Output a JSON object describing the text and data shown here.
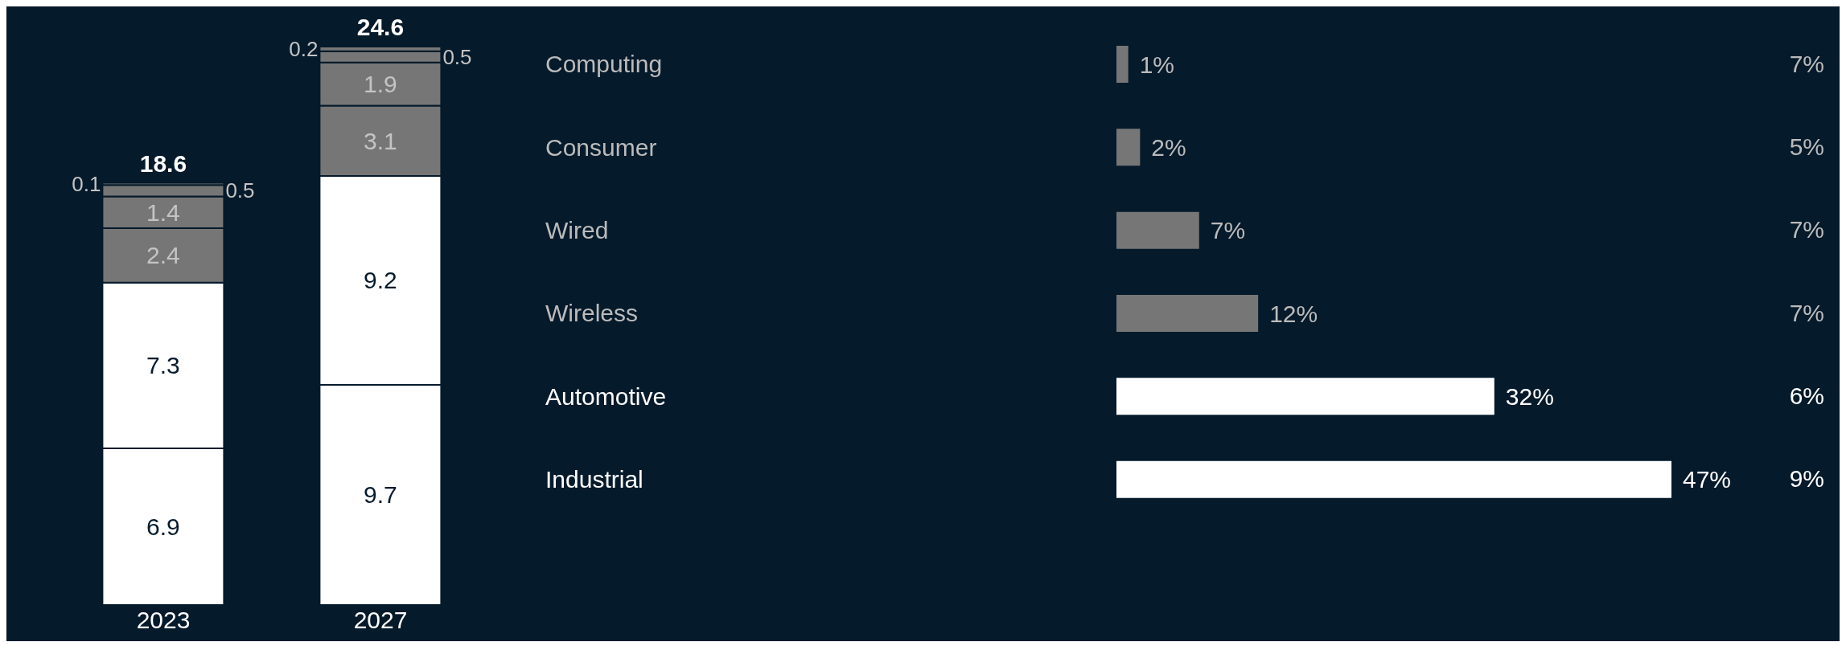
{
  "chart_data": [
    {
      "type": "bar",
      "stacked": true,
      "categories": [
        "2023",
        "2027"
      ],
      "data_labels": true,
      "totals": [
        "18.6",
        "24.6"
      ],
      "series": [
        {
          "color": "#ffffff",
          "values": [
            6.9,
            9.7
          ]
        },
        {
          "color": "#ffffff",
          "values": [
            7.3,
            9.2
          ]
        },
        {
          "color": "#767676",
          "values": [
            2.4,
            3.1
          ]
        },
        {
          "color": "#767676",
          "values": [
            1.4,
            1.9
          ]
        },
        {
          "color": "#767676",
          "values": [
            0.5,
            0.5
          ]
        },
        {
          "color": "#767676",
          "values": [
            0.1,
            0.2
          ]
        }
      ]
    },
    {
      "type": "bar",
      "orientation": "horizontal",
      "categories": [
        "Computing",
        "Consumer",
        "Wired",
        "Wireless",
        "Automotive",
        "Industrial"
      ],
      "values": [
        1,
        2,
        7,
        12,
        32,
        47
      ],
      "colors": [
        "#767676",
        "#767676",
        "#767676",
        "#767676",
        "#ffffff",
        "#ffffff"
      ],
      "value_labels": [
        "1%",
        "2%",
        "7%",
        "12%",
        "32%",
        "47%"
      ],
      "annotations": [
        "7%",
        "5%",
        "7%",
        "7%",
        "6%",
        "9%"
      ]
    }
  ]
}
